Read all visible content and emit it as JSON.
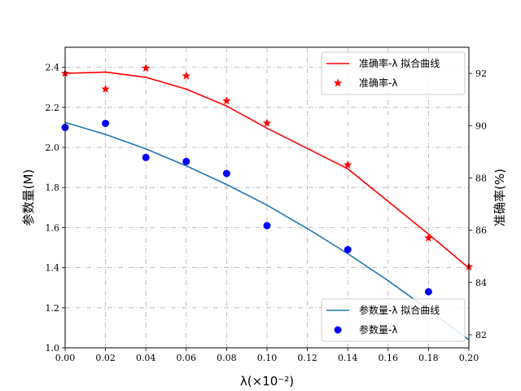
{
  "chart_data": {
    "type": "line",
    "xlabel": "λ(×10⁻²)",
    "ylabel_left": "参数量(M)",
    "ylabel_right": "准确率(%)",
    "xlim": [
      0.0,
      0.2
    ],
    "ylim_left": [
      1.0,
      2.5
    ],
    "ylim_right": [
      81.5,
      93.0
    ],
    "x_ticks": [
      "0.00",
      "0.02",
      "0.04",
      "0.06",
      "0.08",
      "0.10",
      "0.12",
      "0.14",
      "0.16",
      "0.18",
      "0.20"
    ],
    "y_left_ticks": [
      "1.0",
      "1.2",
      "1.4",
      "1.6",
      "1.8",
      "2.0",
      "2.2",
      "2.4"
    ],
    "y_right_ticks": [
      "82",
      "84",
      "86",
      "88",
      "90",
      "92"
    ],
    "grid": true,
    "grid_style": "dashdot",
    "series": [
      {
        "name": "参数量-λ 拟合曲线",
        "axis": "left",
        "kind": "line",
        "color": "#1f77b4",
        "x": [
          0.0,
          0.02,
          0.04,
          0.06,
          0.08,
          0.1,
          0.12,
          0.14,
          0.16,
          0.18,
          0.2
        ],
        "y": [
          2.125,
          2.065,
          1.993,
          1.908,
          1.815,
          1.712,
          1.595,
          1.47,
          1.335,
          1.19,
          1.04
        ]
      },
      {
        "name": "参数量-λ",
        "axis": "left",
        "kind": "scatter",
        "marker": "circle",
        "color": "#0000ff",
        "x": [
          0.0,
          0.02,
          0.04,
          0.06,
          0.08,
          0.1,
          0.14,
          0.18
        ],
        "y": [
          2.1,
          2.12,
          1.95,
          1.93,
          1.87,
          1.61,
          1.49,
          1.28
        ]
      },
      {
        "name": "准确率-λ 拟合曲线",
        "axis": "right",
        "kind": "line",
        "color": "#ff0000",
        "x": [
          0.0,
          0.02,
          0.04,
          0.06,
          0.08,
          0.1,
          0.14,
          0.18,
          0.2
        ],
        "y": [
          92.0,
          92.05,
          91.85,
          91.4,
          90.75,
          89.9,
          88.35,
          85.85,
          84.55
        ]
      },
      {
        "name": "准确率-λ",
        "axis": "right",
        "kind": "scatter",
        "marker": "star",
        "color": "#ff0000",
        "x": [
          0.0,
          0.02,
          0.04,
          0.06,
          0.08,
          0.1,
          0.14,
          0.18,
          0.2
        ],
        "y": [
          92.0,
          91.4,
          92.2,
          91.9,
          90.95,
          90.1,
          88.5,
          85.7,
          84.6
        ]
      }
    ],
    "legends": [
      {
        "placement": "upper-right",
        "entries": [
          "准确率-λ 拟合曲线",
          "准确率-λ"
        ]
      },
      {
        "placement": "lower-right",
        "entries": [
          "参数量-λ 拟合曲线",
          "参数量-λ"
        ]
      }
    ]
  }
}
